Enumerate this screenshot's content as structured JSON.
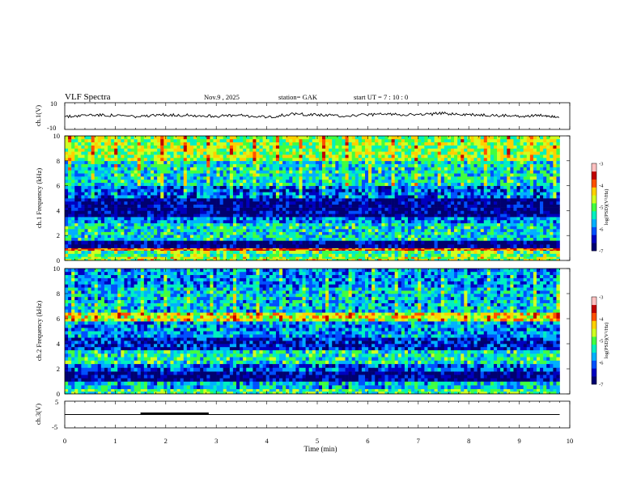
{
  "header": {
    "title": "VLF  Spectra",
    "date": "Nov.9   , 2025",
    "station": "station= GAK",
    "start": "start  UT  =    7  : 10 : 0"
  },
  "colors": {
    "colormap": [
      "#000070",
      "#0000c0",
      "#0050ff",
      "#00b0ff",
      "#00f0c0",
      "#40ff40",
      "#d0ff20",
      "#ffd000",
      "#ff5000",
      "#c00000",
      "#ffc0c0"
    ],
    "trace": "#000000"
  },
  "chart_data": [
    {
      "type": "line",
      "ylabel": "ch.1(V)",
      "ylim": [
        -10,
        10
      ],
      "ytick_labels": [
        "10",
        "-10"
      ],
      "xlim": [
        0,
        10
      ],
      "x": [
        0,
        0.5,
        1,
        1.5,
        2,
        2.5,
        3,
        3.5,
        4,
        4.5,
        5,
        5.5,
        6,
        6.5,
        7,
        7.5,
        8,
        8.5,
        9,
        9.5,
        9.8
      ],
      "y": [
        -0.5,
        1,
        0.5,
        -0.5,
        1,
        0.5,
        0,
        0.5,
        -1,
        1.5,
        1,
        0,
        1,
        1.5,
        1,
        2,
        1,
        0.5,
        0,
        0.5,
        -0.5
      ]
    },
    {
      "type": "heatmap",
      "ylabel": "ch.1  Frequency (kHz)",
      "ylim": [
        0,
        10
      ],
      "ytick_labels": [
        "0",
        "2",
        "4",
        "6",
        "8",
        "10"
      ],
      "xlim": [
        0,
        10
      ],
      "colorbar": {
        "label": "log(PSD)(V²/Hz)",
        "range": [
          -7,
          -3
        ],
        "tick_labels": [
          "-3",
          "-4",
          "-5",
          "-6",
          "-7"
        ]
      },
      "bands": [
        {
          "f": [
            0,
            0.3
          ],
          "level": -4.5
        },
        {
          "f": [
            0.3,
            0.8
          ],
          "level": -4.8
        },
        {
          "f": [
            0.8,
            1.0
          ],
          "level": -3.5
        },
        {
          "f": [
            1.0,
            1.6
          ],
          "level": -6.8
        },
        {
          "f": [
            1.6,
            3.0
          ],
          "level": -5.3
        },
        {
          "f": [
            3.0,
            3.5
          ],
          "level": -5.8
        },
        {
          "f": [
            3.5,
            5.0
          ],
          "level": -6.7
        },
        {
          "f": [
            5.0,
            6.0
          ],
          "level": -6.0
        },
        {
          "f": [
            6.0,
            8.0
          ],
          "level": -5.3
        },
        {
          "f": [
            8.0,
            10.0
          ],
          "level": -4.6
        }
      ]
    },
    {
      "type": "heatmap",
      "ylabel": "ch.2  Frequency (kHz)",
      "ylim": [
        0,
        10
      ],
      "ytick_labels": [
        "0",
        "2",
        "4",
        "6",
        "8",
        "10"
      ],
      "xlim": [
        0,
        10
      ],
      "colorbar": {
        "label": "log(PSD)(V²/Hz)",
        "range": [
          -7,
          -3
        ],
        "tick_labels": [
          "-3",
          "-4",
          "-5",
          "-6",
          "-7"
        ]
      },
      "bands": [
        {
          "f": [
            0,
            0.4
          ],
          "level": -5.0
        },
        {
          "f": [
            0.4,
            1.0
          ],
          "level": -5.5
        },
        {
          "f": [
            1.0,
            1.8
          ],
          "level": -6.7
        },
        {
          "f": [
            1.8,
            2.4
          ],
          "level": -6.0
        },
        {
          "f": [
            2.4,
            3.5
          ],
          "level": -5.2
        },
        {
          "f": [
            3.5,
            4.5
          ],
          "level": -6.3
        },
        {
          "f": [
            4.5,
            5.8
          ],
          "level": -5.7
        },
        {
          "f": [
            5.8,
            6.5
          ],
          "level": -4.3
        },
        {
          "f": [
            6.5,
            8.5
          ],
          "level": -5.5
        },
        {
          "f": [
            8.5,
            10.0
          ],
          "level": -5.8
        }
      ]
    },
    {
      "type": "line",
      "ylabel": "ch.3(V)",
      "ylim": [
        -5,
        5
      ],
      "ytick_labels": [
        "5",
        "-5"
      ],
      "xlim": [
        0,
        10
      ],
      "x": [
        0,
        9.8
      ],
      "y": [
        0,
        0
      ],
      "pulse": {
        "x": [
          1.5,
          2.85
        ],
        "y": 0.3
      }
    }
  ],
  "time_axis": {
    "xlabel": "Time  (min)",
    "tick_labels": [
      "0",
      "1",
      "2",
      "3",
      "4",
      "5",
      "6",
      "7",
      "8",
      "9",
      "10"
    ]
  }
}
